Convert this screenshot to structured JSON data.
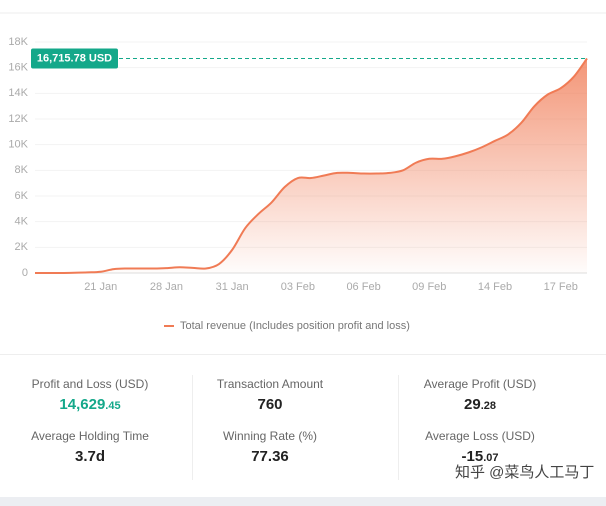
{
  "chart_data": {
    "type": "area",
    "annotation": "16,715.78 USD",
    "x": [
      0,
      2,
      4,
      6,
      8,
      10,
      12,
      14,
      16,
      18,
      20,
      22,
      24,
      26,
      28,
      30,
      32,
      34,
      36,
      38,
      40,
      42,
      44,
      46,
      48,
      50,
      52,
      54,
      56,
      58,
      60,
      62,
      64,
      66,
      68,
      70,
      72,
      74,
      76,
      78,
      80,
      82,
      84
    ],
    "series": [
      {
        "name": "Total revenue (Includes position profit and loss)",
        "color": "#f07b55",
        "values": [
          0,
          0,
          0,
          20,
          50,
          100,
          300,
          350,
          350,
          350,
          380,
          450,
          400,
          350,
          700,
          1800,
          3500,
          4600,
          5500,
          6700,
          7400,
          7400,
          7600,
          7800,
          7800,
          7750,
          7750,
          7800,
          8000,
          8600,
          8900,
          8900,
          9100,
          9400,
          9800,
          10300,
          10800,
          11700,
          13000,
          13900,
          14400,
          15300,
          16715.78
        ]
      }
    ],
    "xlim": [
      0,
      84
    ],
    "xticks": [
      {
        "value": 10,
        "label": "21 Jan"
      },
      {
        "value": 20,
        "label": "28 Jan"
      },
      {
        "value": 30,
        "label": "31 Jan"
      },
      {
        "value": 40,
        "label": "03 Feb"
      },
      {
        "value": 50,
        "label": "06 Feb"
      },
      {
        "value": 60,
        "label": "09 Feb"
      },
      {
        "value": 70,
        "label": "14 Feb"
      },
      {
        "value": 80,
        "label": "17 Feb"
      }
    ],
    "ylim": [
      0,
      18000
    ],
    "yticks": [
      0,
      {
        "value": 2000,
        "label": "2K"
      },
      {
        "value": 4000,
        "label": "4K"
      },
      {
        "value": 6000,
        "label": "6K"
      },
      {
        "value": 8000,
        "label": "8K"
      },
      {
        "value": 10000,
        "label": "10K"
      },
      {
        "value": 12000,
        "label": "12K"
      },
      {
        "value": 14000,
        "label": "14K"
      },
      {
        "value": 16000,
        "label": "16K"
      },
      {
        "value": 18000,
        "label": "18K"
      }
    ],
    "grid": true
  },
  "stats": [
    {
      "label": "Profit and Loss (USD)",
      "value": "14,629.45"
    },
    {
      "label": "Transaction Amount",
      "value": "760"
    },
    {
      "label": "Average Profit (USD)",
      "value": "29.28"
    },
    {
      "label": "Average Holding Time",
      "value": "3.7d"
    },
    {
      "label": "Winning Rate (%)",
      "value": "77.36"
    },
    {
      "label": "Average Loss (USD)",
      "value": "-15.07"
    }
  ],
  "watermark": "知乎 @菜鸟人工马丁"
}
